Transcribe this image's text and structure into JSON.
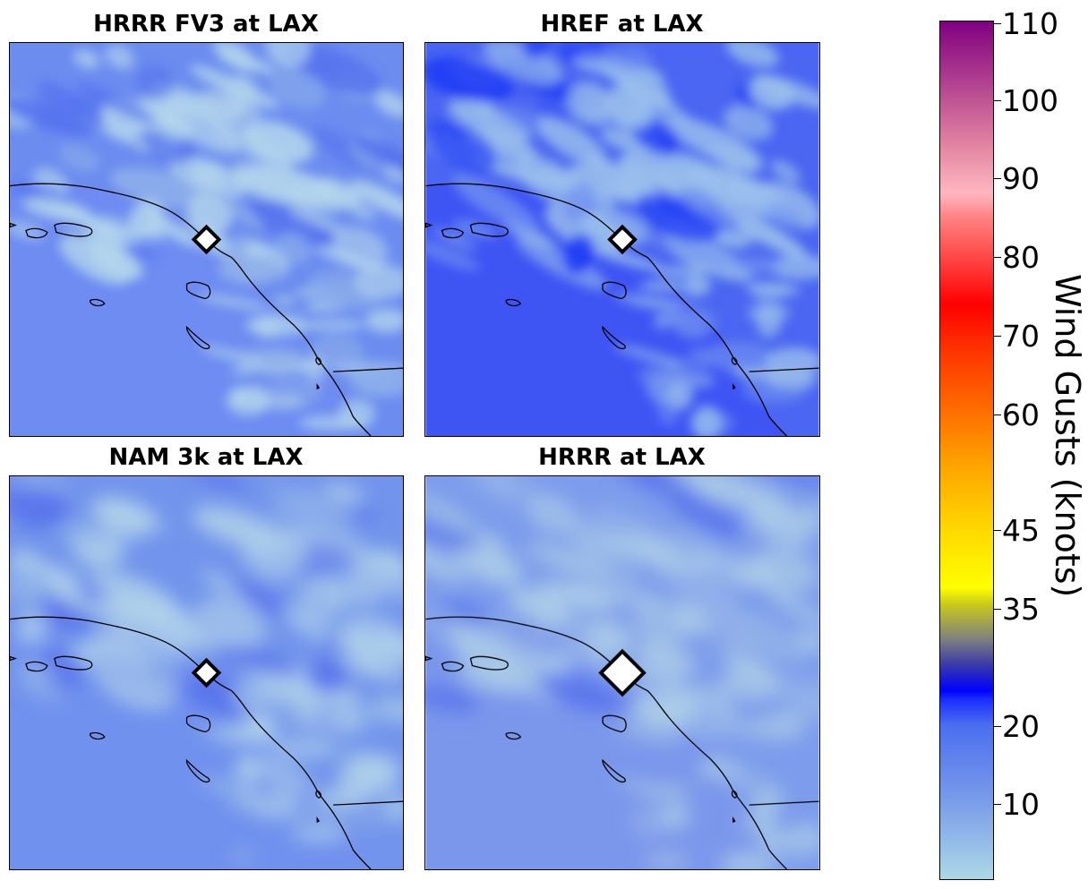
{
  "panels": [
    {
      "title": "HRRR FV3 at LAX",
      "station": "LAX",
      "style": "fv3"
    },
    {
      "title": "HREF at LAX",
      "station": "LAX",
      "style": "href"
    },
    {
      "title": "NAM 3k at LAX",
      "station": "LAX",
      "style": "nam"
    },
    {
      "title": "HRRR at LAX",
      "station": "LAX",
      "style": "hrrr"
    }
  ],
  "colorbar": {
    "label": "Wind Gusts (knots)",
    "ticks": [
      "10",
      "20",
      "35",
      "45",
      "60",
      "70",
      "80",
      "90",
      "100",
      "110"
    ],
    "colors": [
      "#add8e6",
      "#4169e1",
      "#0000ff",
      "#808080",
      "#ffff00",
      "#ffa500",
      "#ff0000",
      "#ffb6c1",
      "#800080"
    ]
  },
  "chart_data": {
    "type": "heatmap",
    "variable": "Wind Gusts",
    "units": "knots",
    "colorbar_ticks": [
      10,
      20,
      35,
      45,
      60,
      70,
      80,
      90,
      100,
      110
    ],
    "panels": [
      "HRRR FV3 at LAX",
      "HREF at LAX",
      "NAM 3k at LAX",
      "HRRR at LAX"
    ]
  }
}
